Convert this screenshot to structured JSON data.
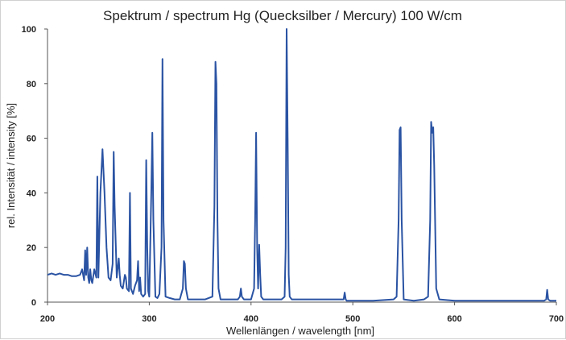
{
  "chart_data": {
    "type": "line",
    "title": "Spektrum / spectrum Hg (Quecksilber / Mercury) 100 W/cm",
    "xlabel": "Wellenlängen / wavelength [nm]",
    "ylabel": "rel. Intensität / intensity [%]",
    "xlim": [
      200,
      700
    ],
    "ylim": [
      0,
      100
    ],
    "x_ticks": [
      200,
      300,
      400,
      500,
      600,
      700
    ],
    "y_ticks": [
      0,
      20,
      40,
      60,
      80,
      100
    ],
    "grid": false,
    "line_color": "#2a53a3",
    "series": [
      {
        "x": [
          200,
          204,
          208,
          212,
          216,
          220,
          224,
          228,
          232,
          234,
          236,
          237,
          238,
          239,
          240,
          241,
          242,
          243,
          244,
          246,
          248,
          249,
          250,
          252,
          254,
          256,
          258,
          260,
          262,
          264,
          265,
          266,
          268,
          270,
          271,
          272,
          274,
          276,
          277,
          278,
          280,
          281,
          282,
          284,
          286,
          288,
          289,
          290,
          291,
          292,
          294,
          296,
          297,
          298,
          299,
          300,
          302,
          303,
          304,
          306,
          308,
          310,
          312,
          313,
          314,
          316,
          320,
          325,
          330,
          333,
          334,
          335,
          336,
          338,
          345,
          355,
          362,
          364,
          365,
          366,
          367,
          368,
          370,
          375,
          380,
          387,
          389,
          390,
          391,
          393,
          400,
          403,
          404,
          405,
          406,
          407,
          408,
          409,
          410,
          412,
          420,
          430,
          433,
          434,
          435,
          436,
          437,
          438,
          440,
          450,
          460,
          480,
          490,
          491,
          492,
          493,
          494,
          496,
          500,
          520,
          540,
          543,
          545,
          546,
          547,
          548,
          550,
          560,
          570,
          574,
          576,
          577,
          578,
          579,
          580,
          582,
          585,
          600,
          625,
          650,
          680,
          688,
          690,
          691,
          692,
          694,
          700
        ],
        "y": [
          10,
          10.5,
          10,
          10.5,
          10,
          10,
          9.5,
          9.5,
          10,
          12,
          8,
          19,
          10,
          20,
          9,
          7,
          12,
          8,
          7,
          12,
          9,
          46,
          9,
          40,
          56,
          40,
          20,
          9,
          8,
          14,
          55,
          35,
          9,
          16,
          10,
          6,
          5,
          10,
          9,
          5,
          4,
          40,
          5,
          3,
          6,
          8,
          15,
          4,
          9,
          3,
          2,
          3,
          52,
          20,
          4,
          2,
          40,
          62,
          30,
          2,
          1.5,
          3,
          20,
          89,
          30,
          2,
          1.5,
          1,
          1,
          5,
          15,
          14,
          5,
          1,
          1,
          1,
          2,
          35,
          88,
          80,
          30,
          5,
          1,
          1,
          1,
          1,
          2,
          5,
          2,
          1,
          1,
          5,
          30,
          62,
          20,
          5,
          21,
          10,
          2,
          1,
          1,
          1,
          2,
          20,
          100,
          60,
          10,
          2,
          1,
          1,
          1,
          1,
          1,
          1,
          3.5,
          1,
          0.5,
          0.5,
          0.5,
          0.5,
          1,
          2,
          30,
          63,
          64,
          30,
          1,
          0.5,
          1,
          2,
          30,
          66,
          62,
          64,
          50,
          5,
          1,
          0.5,
          0.5,
          0.5,
          0.5,
          0.5,
          1,
          4.5,
          1,
          0.5,
          0.5
        ]
      }
    ]
  }
}
